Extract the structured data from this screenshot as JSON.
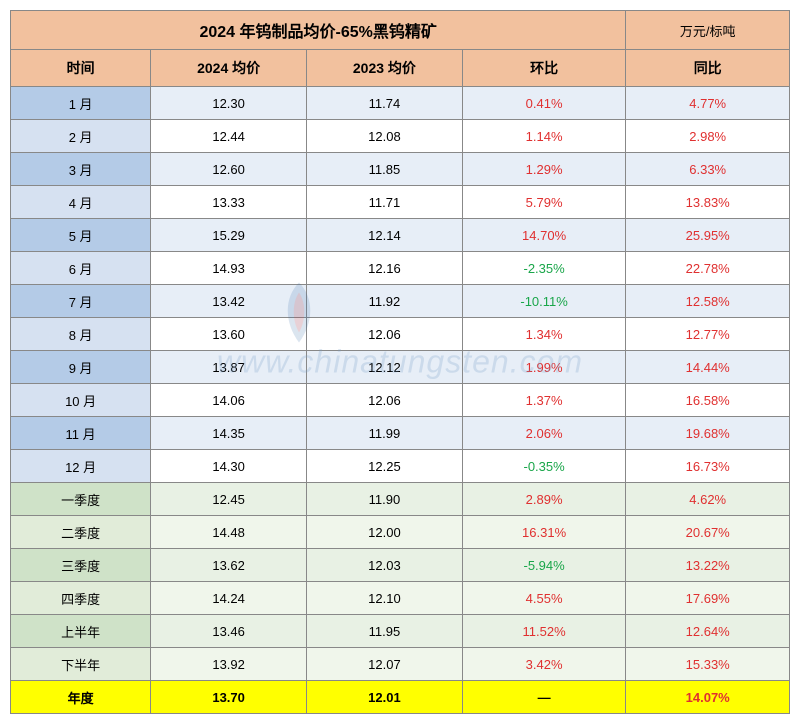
{
  "title": "2024 年钨制品均价-65%黑钨精矿",
  "unit": "万元/标吨",
  "columns": [
    "时间",
    "2024 均价",
    "2023 均价",
    "环比",
    "同比"
  ],
  "watermark_text": "www.chinatungsten.com",
  "rows": [
    {
      "style": "row-alt-blue",
      "cells": [
        "1 月",
        "12.30",
        "11.74",
        {
          "v": "0.41%",
          "c": "val-red"
        },
        {
          "v": "4.77%",
          "c": "val-red"
        }
      ]
    },
    {
      "style": "row-blue",
      "cells": [
        "2 月",
        "12.44",
        "12.08",
        {
          "v": "1.14%",
          "c": "val-red"
        },
        {
          "v": "2.98%",
          "c": "val-red"
        }
      ]
    },
    {
      "style": "row-alt-blue",
      "cells": [
        "3 月",
        "12.60",
        "11.85",
        {
          "v": "1.29%",
          "c": "val-red"
        },
        {
          "v": "6.33%",
          "c": "val-red"
        }
      ]
    },
    {
      "style": "row-blue",
      "cells": [
        "4 月",
        "13.33",
        "11.71",
        {
          "v": "5.79%",
          "c": "val-red"
        },
        {
          "v": "13.83%",
          "c": "val-red"
        }
      ]
    },
    {
      "style": "row-alt-blue",
      "cells": [
        "5 月",
        "15.29",
        "12.14",
        {
          "v": "14.70%",
          "c": "val-red"
        },
        {
          "v": "25.95%",
          "c": "val-red"
        }
      ]
    },
    {
      "style": "row-blue",
      "cells": [
        "6 月",
        "14.93",
        "12.16",
        {
          "v": "-2.35%",
          "c": "val-green"
        },
        {
          "v": "22.78%",
          "c": "val-red"
        }
      ]
    },
    {
      "style": "row-alt-blue",
      "cells": [
        "7 月",
        "13.42",
        "11.92",
        {
          "v": "-10.11%",
          "c": "val-green"
        },
        {
          "v": "12.58%",
          "c": "val-red"
        }
      ]
    },
    {
      "style": "row-blue",
      "cells": [
        "8 月",
        "13.60",
        "12.06",
        {
          "v": "1.34%",
          "c": "val-red"
        },
        {
          "v": "12.77%",
          "c": "val-red"
        }
      ]
    },
    {
      "style": "row-alt-blue",
      "cells": [
        "9 月",
        "13.87",
        "12.12",
        {
          "v": "1.99%",
          "c": "val-red"
        },
        {
          "v": "14.44%",
          "c": "val-red"
        }
      ]
    },
    {
      "style": "row-blue",
      "cells": [
        "10 月",
        "14.06",
        "12.06",
        {
          "v": "1.37%",
          "c": "val-red"
        },
        {
          "v": "16.58%",
          "c": "val-red"
        }
      ]
    },
    {
      "style": "row-alt-blue",
      "cells": [
        "11 月",
        "14.35",
        "11.99",
        {
          "v": "2.06%",
          "c": "val-red"
        },
        {
          "v": "19.68%",
          "c": "val-red"
        }
      ]
    },
    {
      "style": "row-blue",
      "cells": [
        "12 月",
        "14.30",
        "12.25",
        {
          "v": "-0.35%",
          "c": "val-green"
        },
        {
          "v": "16.73%",
          "c": "val-red"
        }
      ]
    },
    {
      "style": "row-green",
      "cells": [
        "一季度",
        "12.45",
        "11.90",
        {
          "v": "2.89%",
          "c": "val-red"
        },
        {
          "v": "4.62%",
          "c": "val-red"
        }
      ]
    },
    {
      "style": "row-green-alt",
      "cells": [
        "二季度",
        "14.48",
        "12.00",
        {
          "v": "16.31%",
          "c": "val-red"
        },
        {
          "v": "20.67%",
          "c": "val-red"
        }
      ]
    },
    {
      "style": "row-green",
      "cells": [
        "三季度",
        "13.62",
        "12.03",
        {
          "v": "-5.94%",
          "c": "val-green"
        },
        {
          "v": "13.22%",
          "c": "val-red"
        }
      ]
    },
    {
      "style": "row-green-alt",
      "cells": [
        "四季度",
        "14.24",
        "12.10",
        {
          "v": "4.55%",
          "c": "val-red"
        },
        {
          "v": "17.69%",
          "c": "val-red"
        }
      ]
    },
    {
      "style": "row-green",
      "cells": [
        "上半年",
        "13.46",
        "11.95",
        {
          "v": "11.52%",
          "c": "val-red"
        },
        {
          "v": "12.64%",
          "c": "val-red"
        }
      ]
    },
    {
      "style": "row-green-alt",
      "cells": [
        "下半年",
        "13.92",
        "12.07",
        {
          "v": "3.42%",
          "c": "val-red"
        },
        {
          "v": "15.33%",
          "c": "val-red"
        }
      ]
    },
    {
      "style": "row-yellow",
      "cells": [
        "年度",
        "13.70",
        "12.01",
        {
          "v": "—",
          "c": "val-black"
        },
        {
          "v": "14.07%",
          "c": "val-red"
        }
      ]
    }
  ],
  "col_widths": [
    "18%",
    "20%",
    "20%",
    "21%",
    "21%"
  ]
}
